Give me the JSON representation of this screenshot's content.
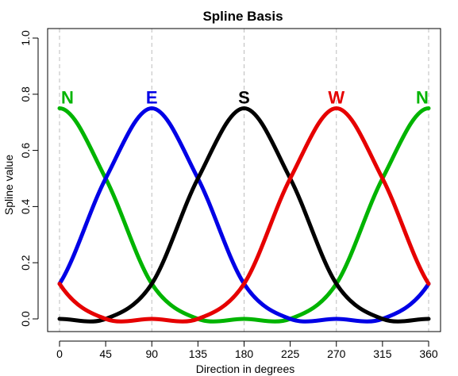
{
  "chart_data": {
    "type": "line",
    "title": "Spline Basis",
    "xlabel": "Direction in degrees",
    "ylabel": "Spline value",
    "xlim": [
      0,
      360
    ],
    "ylim": [
      0,
      1.0
    ],
    "x_ticks": [
      0,
      45,
      90,
      135,
      180,
      225,
      270,
      315,
      360
    ],
    "y_ticks": [
      0.0,
      0.2,
      0.4,
      0.6,
      0.8,
      1.0
    ],
    "y_tick_labels": [
      "0.0",
      "0.2",
      "0.4",
      "0.6",
      "0.8",
      "1.0"
    ],
    "grid": "vertical dashed at 0, 90, 180, 270, 360",
    "series": [
      {
        "color": "#00b400",
        "x": [
          0,
          45,
          90,
          135,
          180,
          225,
          270,
          315,
          360
        ],
        "values": [
          0.75,
          0.5,
          0.125,
          0,
          0,
          0,
          0.125,
          0.5,
          0.75
        ]
      },
      {
        "color": "#0000e6",
        "x": [
          0,
          45,
          90,
          135,
          180,
          225,
          270,
          315,
          360
        ],
        "values": [
          0.125,
          0.5,
          0.75,
          0.5,
          0.125,
          0,
          0,
          0,
          0.125
        ]
      },
      {
        "color": "#000000",
        "x": [
          0,
          45,
          90,
          135,
          180,
          225,
          270,
          315,
          360
        ],
        "values": [
          0,
          0,
          0.125,
          0.5,
          0.75,
          0.5,
          0.125,
          0,
          0
        ]
      },
      {
        "color": "#e60000",
        "x": [
          0,
          45,
          90,
          135,
          180,
          225,
          270,
          315,
          360
        ],
        "values": [
          0.125,
          0,
          0,
          0,
          0.125,
          0.5,
          0.75,
          0.5,
          0.125
        ]
      }
    ],
    "annotations": [
      {
        "text": "N",
        "x": 0,
        "y": 0.75,
        "color": "#00b400"
      },
      {
        "text": "E",
        "x": 90,
        "y": 0.75,
        "color": "#0000e6"
      },
      {
        "text": "S",
        "x": 180,
        "y": 0.75,
        "color": "#000000"
      },
      {
        "text": "W",
        "x": 270,
        "y": 0.75,
        "color": "#e60000"
      },
      {
        "text": "N",
        "x": 360,
        "y": 0.75,
        "color": "#00b400"
      }
    ]
  }
}
